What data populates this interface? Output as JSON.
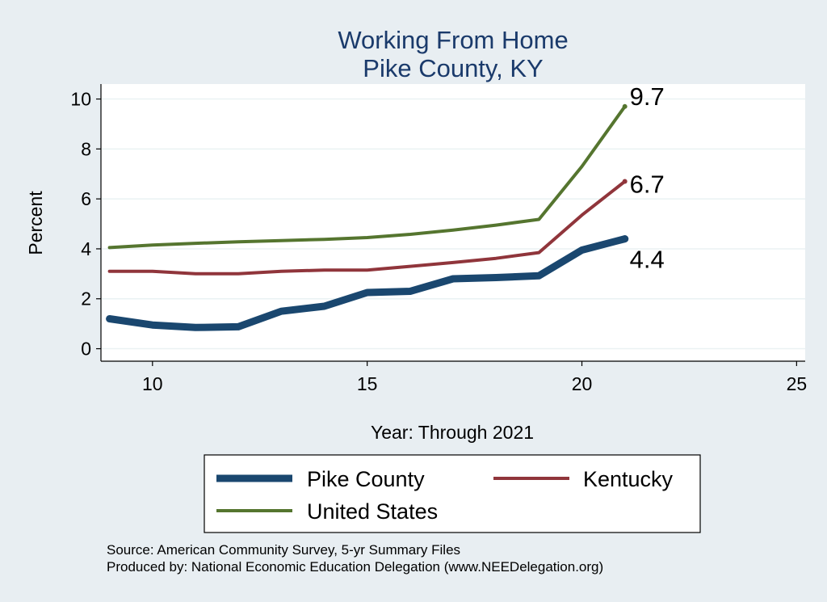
{
  "chart_data": {
    "type": "line",
    "title": [
      "Working From Home",
      "Pike County, KY"
    ],
    "xlabel": "Year: Through 2021",
    "ylabel": "Percent",
    "xlim": [
      8.8,
      25.2
    ],
    "ylim": [
      -0.5,
      10.6
    ],
    "xticks": [
      10,
      15,
      20,
      25
    ],
    "yticks": [
      0,
      2,
      4,
      6,
      8,
      10
    ],
    "grid": true,
    "legend_position": "bottom",
    "x": [
      9,
      10,
      11,
      12,
      13,
      14,
      15,
      16,
      17,
      18,
      19,
      20,
      21
    ],
    "series": [
      {
        "name": "Pike County",
        "color": "#1a476f",
        "values": [
          1.2,
          0.95,
          0.85,
          0.88,
          1.5,
          1.7,
          2.25,
          2.3,
          2.8,
          2.85,
          2.92,
          3.95,
          4.4
        ]
      },
      {
        "name": "Kentucky",
        "color": "#90353b",
        "values": [
          3.1,
          3.1,
          3.0,
          3.0,
          3.1,
          3.15,
          3.15,
          3.3,
          3.45,
          3.62,
          3.85,
          5.35,
          6.7
        ]
      },
      {
        "name": "United States",
        "color": "#55752f",
        "values": [
          4.05,
          4.15,
          4.22,
          4.28,
          4.33,
          4.38,
          4.45,
          4.58,
          4.75,
          4.95,
          5.18,
          7.3,
          9.7
        ]
      }
    ],
    "end_labels": [
      "9.7",
      "6.7",
      "4.4"
    ]
  },
  "notes": {
    "source": "Source: American Community Survey, 5-yr Summary Files",
    "produced": "Produced by: National Economic Education Delegation (www.NEEDelegation.org)"
  }
}
